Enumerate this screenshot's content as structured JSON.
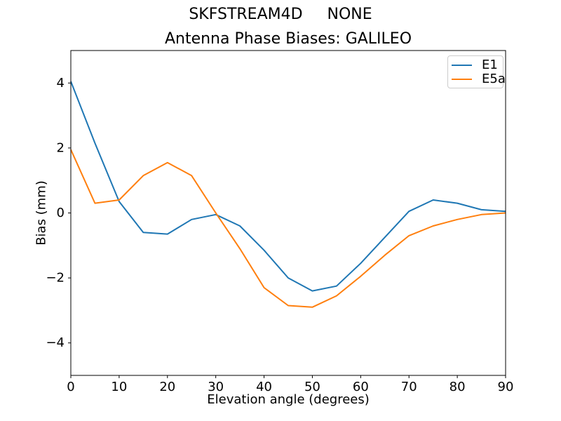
{
  "chart_data": {
    "type": "line",
    "suptitle": "SKFSTREAM4D     NONE",
    "title": "Antenna Phase Biases: GALILEO",
    "xlabel": "Elevation angle (degrees)",
    "ylabel": "Bias (mm)",
    "xlim": [
      0,
      90
    ],
    "ylim": [
      -5,
      5
    ],
    "xticks": [
      0,
      10,
      20,
      30,
      40,
      50,
      60,
      70,
      80,
      90
    ],
    "yticks": [
      -4,
      -2,
      0,
      2,
      4
    ],
    "grid": false,
    "legend_position": "upper right",
    "x": [
      0,
      5,
      10,
      15,
      20,
      25,
      30,
      35,
      40,
      45,
      50,
      55,
      60,
      65,
      70,
      75,
      80,
      85,
      90
    ],
    "series": [
      {
        "name": "E1",
        "color": "#1f77b4",
        "values": [
          4.05,
          2.15,
          0.35,
          -0.6,
          -0.65,
          -0.2,
          -0.05,
          -0.4,
          -1.15,
          -2.0,
          -2.4,
          -2.25,
          -1.55,
          -0.75,
          0.05,
          0.4,
          0.3,
          0.1,
          0.05
        ]
      },
      {
        "name": "E5a",
        "color": "#ff7f0e",
        "values": [
          1.95,
          0.3,
          0.4,
          1.15,
          1.55,
          1.15,
          0.0,
          -1.1,
          -2.3,
          -2.85,
          -2.9,
          -2.55,
          -1.95,
          -1.3,
          -0.7,
          -0.4,
          -0.2,
          -0.05,
          0.0
        ]
      }
    ]
  }
}
